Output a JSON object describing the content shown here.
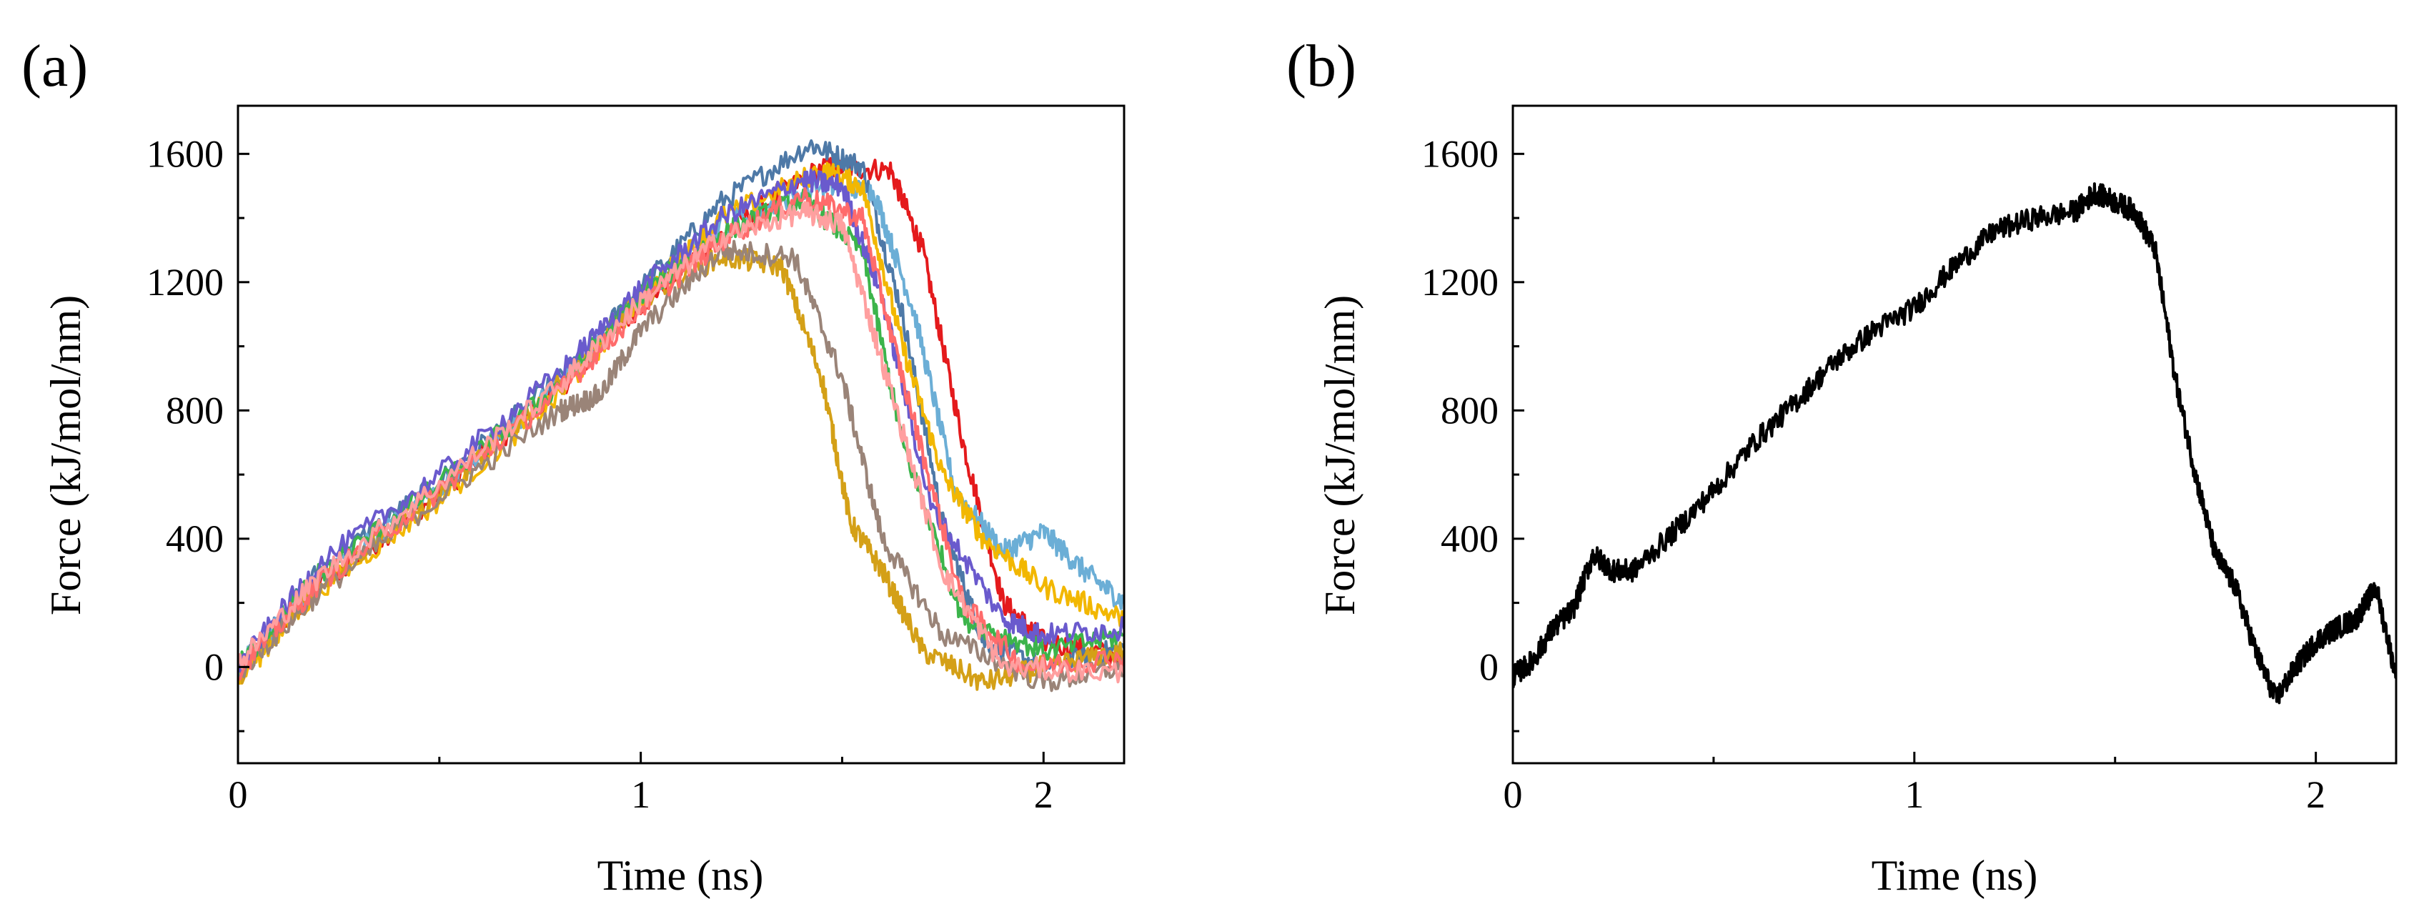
{
  "chart_data": [
    {
      "panel_label": "(a)",
      "type": "line",
      "xlabel": "Time (ns)",
      "ylabel": "Force (kJ/mol/nm)",
      "xlim": [
        0,
        2.2
      ],
      "ylim": [
        -300,
        1750
      ],
      "xticks": [
        0,
        1,
        2
      ],
      "yticks": [
        0,
        400,
        800,
        1200,
        1600
      ],
      "grid": false,
      "legend": "none",
      "series": [
        {
          "color": "#e41a1c",
          "x": [
            0,
            0.2,
            0.5,
            0.8,
            1.0,
            1.2,
            1.45,
            1.62,
            1.7,
            1.8,
            1.9,
            2.0,
            2.2
          ],
          "y": [
            -20,
            250,
            540,
            870,
            1130,
            1350,
            1560,
            1550,
            1300,
            700,
            200,
            80,
            30
          ]
        },
        {
          "color": "#4e79a7",
          "x": [
            0,
            0.2,
            0.5,
            0.8,
            1.0,
            1.2,
            1.42,
            1.55,
            1.65,
            1.75,
            1.85,
            2.0,
            2.2
          ],
          "y": [
            -10,
            300,
            580,
            900,
            1180,
            1450,
            1630,
            1560,
            1100,
            450,
            80,
            0,
            60
          ]
        },
        {
          "color": "#6baed6",
          "x": [
            0,
            0.2,
            0.5,
            0.8,
            1.0,
            1.2,
            1.45,
            1.58,
            1.68,
            1.78,
            1.9,
            2.0,
            2.1,
            2.2
          ],
          "y": [
            0,
            270,
            560,
            880,
            1150,
            1380,
            1500,
            1480,
            1100,
            550,
            360,
            420,
            300,
            200
          ]
        },
        {
          "color": "#f2b701",
          "x": [
            0,
            0.2,
            0.5,
            0.8,
            1.0,
            1.2,
            1.45,
            1.55,
            1.65,
            1.75,
            1.85,
            2.0,
            2.2
          ],
          "y": [
            -40,
            240,
            520,
            850,
            1150,
            1400,
            1550,
            1500,
            1000,
            600,
            400,
            250,
            150
          ]
        },
        {
          "color": "#d4a017",
          "x": [
            0,
            0.2,
            0.5,
            0.8,
            1.0,
            1.2,
            1.35,
            1.45,
            1.52,
            1.6,
            1.7,
            1.85,
            2.0,
            2.2
          ],
          "y": [
            -30,
            260,
            540,
            880,
            1150,
            1280,
            1250,
            900,
            450,
            300,
            50,
            -50,
            0,
            50
          ]
        },
        {
          "color": "#3cb44b",
          "x": [
            0,
            0.2,
            0.5,
            0.8,
            1.0,
            1.2,
            1.4,
            1.55,
            1.65,
            1.8,
            2.0,
            2.2
          ],
          "y": [
            0,
            290,
            570,
            880,
            1160,
            1350,
            1460,
            1300,
            700,
            150,
            50,
            100
          ]
        },
        {
          "color": "#9a8478",
          "x": [
            0,
            0.2,
            0.5,
            0.8,
            0.9,
            1.0,
            1.2,
            1.38,
            1.5,
            1.6,
            1.75,
            2.0,
            2.2
          ],
          "y": [
            -20,
            230,
            530,
            800,
            850,
            1050,
            1300,
            1280,
            900,
            400,
            100,
            -50,
            0
          ]
        },
        {
          "color": "#6a5acd",
          "x": [
            0,
            0.2,
            0.5,
            0.8,
            1.0,
            1.2,
            1.4,
            1.5,
            1.6,
            1.72,
            1.9,
            2.0,
            2.2
          ],
          "y": [
            0,
            320,
            600,
            920,
            1180,
            1400,
            1520,
            1500,
            1150,
            500,
            150,
            100,
            120
          ]
        },
        {
          "color": "#ff6b6b",
          "x": [
            0,
            0.2,
            0.5,
            0.8,
            1.0,
            1.2,
            1.4,
            1.55,
            1.65,
            1.8,
            1.95,
            2.2
          ],
          "y": [
            -10,
            260,
            550,
            860,
            1120,
            1330,
            1470,
            1400,
            900,
            200,
            0,
            30
          ]
        },
        {
          "color": "#ff9f9f",
          "x": [
            0,
            0.2,
            0.5,
            0.8,
            1.0,
            1.2,
            1.4,
            1.5,
            1.6,
            1.75,
            1.9,
            2.2
          ],
          "y": [
            10,
            280,
            570,
            880,
            1140,
            1340,
            1420,
            1380,
            950,
            300,
            0,
            -20
          ]
        }
      ]
    },
    {
      "panel_label": "(b)",
      "type": "line",
      "xlabel": "Time (ns)",
      "ylabel": "Force (kJ/mol/nm)",
      "xlim": [
        0,
        2.2
      ],
      "ylim": [
        -300,
        1750
      ],
      "xticks": [
        0,
        1,
        2
      ],
      "yticks": [
        0,
        400,
        800,
        1200,
        1600
      ],
      "grid": false,
      "legend": "none",
      "series": [
        {
          "color": "#000000",
          "x": [
            0,
            0.05,
            0.1,
            0.15,
            0.2,
            0.25,
            0.3,
            0.4,
            0.5,
            0.6,
            0.7,
            0.8,
            0.9,
            1.0,
            1.1,
            1.2,
            1.3,
            1.4,
            1.45,
            1.5,
            1.55,
            1.6,
            1.65,
            1.7,
            1.75,
            1.8,
            1.85,
            1.9,
            1.95,
            2.0,
            2.05,
            2.1,
            2.15,
            2.2
          ],
          "y": [
            -30,
            20,
            120,
            180,
            350,
            300,
            300,
            420,
            550,
            700,
            820,
            950,
            1050,
            1120,
            1250,
            1360,
            1400,
            1420,
            1480,
            1450,
            1420,
            1300,
            900,
            600,
            350,
            250,
            50,
            -100,
            0,
            80,
            120,
            150,
            250,
            -30
          ]
        }
      ]
    }
  ]
}
